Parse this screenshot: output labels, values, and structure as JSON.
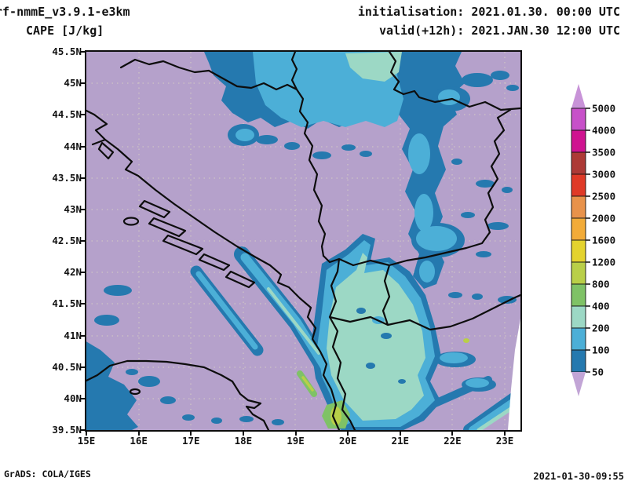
{
  "header": {
    "model": "rf-nmmE_v3.9.1-e3km",
    "variable": "CAPE [J/kg]",
    "init_label": "initialisation: 2021.01.30. 00:00 UTC",
    "valid_label": "valid(+12h): 2021.JAN.30 12:00 UTC"
  },
  "map": {
    "lat_ticks": [
      "45.5N",
      "45N",
      "44.5N",
      "44N",
      "43.5N",
      "43N",
      "42.5N",
      "42N",
      "41.5N",
      "41N",
      "40.5N",
      "40N",
      "39.5N"
    ],
    "lon_ticks": [
      "15E",
      "16E",
      "17E",
      "18E",
      "19E",
      "20E",
      "21E",
      "22E",
      "23E"
    ]
  },
  "colorbar": {
    "tick_labels": [
      "5000",
      "4000",
      "3500",
      "3000",
      "2500",
      "2000",
      "1600",
      "1200",
      "800",
      "400",
      "200",
      "100",
      "50"
    ],
    "segment_colors_top_to_bottom": [
      "#c750c9",
      "#cf1390",
      "#ad3a36",
      "#df3a27",
      "#e8924a",
      "#f2ab38",
      "#e4d32e",
      "#b9cf48",
      "#7fc266",
      "#9cd8c5",
      "#4cafd7",
      "#2579af"
    ],
    "over_color": "#c893d8",
    "under_color": "#c2a5d6"
  },
  "palette": {
    "bg": "#b5a1cb",
    "cape_50_100": "#2579af",
    "cape_100_200": "#4cafd7",
    "cape_200_400": "#9cd8c5",
    "cape_400_800": "#7fc266",
    "cape_800_1200": "#b9cf48",
    "grid": "#d8d2c2",
    "coast": "#0d0d0d"
  },
  "chart_data": {
    "type": "heatmap",
    "title": "CAPE [J/kg]",
    "x_range": [
      "15E",
      "23.3E"
    ],
    "y_range": [
      "39.5N",
      "45.5N"
    ],
    "levels": [
      50,
      100,
      200,
      400,
      800,
      1200,
      1600,
      2000,
      2500,
      3000,
      3500,
      4000,
      5000
    ],
    "units": "J/kg",
    "notes": "Field mostly below 50 J/kg (lavender). 100-400 J/kg band along northern Serbia/Vojvodina and down eastern Serbia; two NW-SE elongated 100-400 bands over the Adriatic with small 400-1200 cores; 200-400 region over Albania/Kosovo/Macedonia; scattered 50-200 patches over southern Italy and the southeast; small no-data wedge at right edge."
  },
  "footer": {
    "credit": "GrADS: COLA/IGES",
    "timestamp": "2021-01-30-09:55"
  }
}
